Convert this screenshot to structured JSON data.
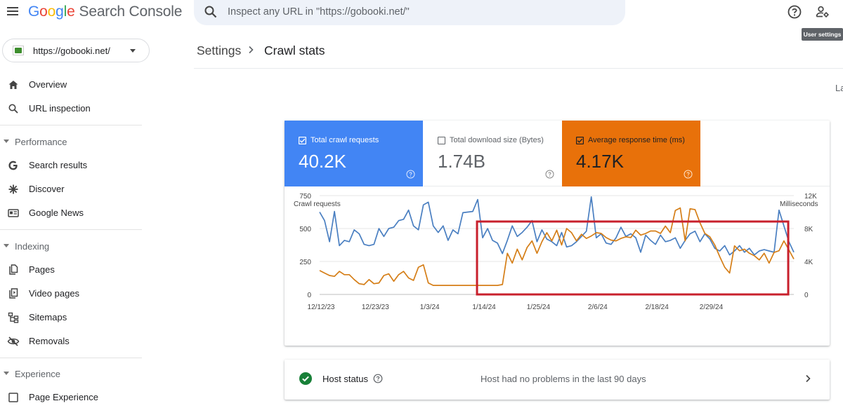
{
  "header": {
    "logo_google": [
      "G",
      "o",
      "o",
      "g",
      "l",
      "e"
    ],
    "product": "Search Console",
    "search_placeholder": "Inspect any URL in \"https://gobooki.net/\"",
    "tooltip": "User settings"
  },
  "property": {
    "label": "https://gobooki.net/"
  },
  "sidebar": {
    "top_items": [
      {
        "label": "Overview",
        "icon": "home-icon"
      },
      {
        "label": "URL inspection",
        "icon": "search-icon"
      }
    ],
    "sections": [
      {
        "title": "Performance",
        "items": [
          {
            "label": "Search results",
            "icon": "google-g-icon"
          },
          {
            "label": "Discover",
            "icon": "asterisk-icon"
          },
          {
            "label": "Google News",
            "icon": "news-icon"
          }
        ]
      },
      {
        "title": "Indexing",
        "items": [
          {
            "label": "Pages",
            "icon": "pages-icon"
          },
          {
            "label": "Video pages",
            "icon": "video-pages-icon"
          },
          {
            "label": "Sitemaps",
            "icon": "sitemap-icon"
          },
          {
            "label": "Removals",
            "icon": "eye-off-icon"
          }
        ]
      },
      {
        "title": "Experience",
        "items": [
          {
            "label": "Page Experience",
            "icon": "page-experience-icon"
          }
        ]
      }
    ]
  },
  "breadcrumb": {
    "parent": "Settings",
    "current": "Crawl stats"
  },
  "partial_text": "La",
  "metrics": [
    {
      "label": "Total crawl requests",
      "value": "40.2K",
      "checked": true,
      "color": "#4285f4"
    },
    {
      "label": "Total download size (Bytes)",
      "value": "1.74B",
      "checked": false,
      "color": "#ffffff"
    },
    {
      "label": "Average response time (ms)",
      "value": "4.17K",
      "checked": true,
      "color": "#e8710a"
    }
  ],
  "chart_data": {
    "type": "line",
    "left_axis_title": "Crawl requests",
    "right_axis_title": "Milliseconds",
    "left_ticks": [
      "750",
      "500",
      "250",
      "0"
    ],
    "right_ticks": [
      "12K",
      "8K",
      "4K",
      "0"
    ],
    "left_ylim": [
      0,
      750
    ],
    "right_ylim": [
      0,
      12000
    ],
    "x_tick_labels": [
      "12/12/23",
      "12/23/23",
      "1/3/24",
      "1/14/24",
      "1/25/24",
      "2/6/24",
      "2/18/24",
      "2/29/24"
    ],
    "x_tick_days": [
      0,
      11,
      22,
      33,
      44,
      56,
      68,
      79
    ],
    "grid": true,
    "series": [
      {
        "axis": "left",
        "color": "#4a7fc1",
        "values": [
          625,
          560,
          400,
          630,
          370,
          410,
          400,
          490,
          460,
          380,
          370,
          380,
          500,
          440,
          500,
          510,
          560,
          570,
          640,
          520,
          490,
          680,
          700,
          520,
          470,
          520,
          410,
          490,
          460,
          620,
          625,
          630,
          720,
          430,
          500,
          410,
          390,
          310,
          410,
          520,
          440,
          470,
          510,
          560,
          400,
          490,
          420,
          400,
          370,
          470,
          360,
          370,
          400,
          440,
          480,
          740,
          430,
          460,
          390,
          380,
          430,
          510,
          440,
          460,
          430,
          320,
          450,
          410,
          380,
          450,
          400,
          410,
          430,
          350,
          410,
          460,
          480,
          400,
          460,
          420,
          350,
          330,
          370,
          300,
          330,
          370,
          320,
          350,
          300,
          330,
          340,
          330,
          320,
          640,
          520,
          400,
          320
        ]
      },
      {
        "axis": "right",
        "color": "#d57e17",
        "values": [
          2900,
          2600,
          2300,
          2200,
          2800,
          2400,
          2400,
          1800,
          1300,
          1200,
          1800,
          1300,
          1400,
          2300,
          2500,
          1600,
          2400,
          2800,
          2000,
          1700,
          3300,
          3600,
          1400,
          1100,
          1100,
          1100,
          1100,
          1100,
          1100,
          1100,
          1100,
          1100,
          1100,
          1100,
          1100,
          1100,
          1100,
          1200,
          5000,
          3800,
          5500,
          4200,
          5700,
          6500,
          5000,
          6400,
          7500,
          6500,
          7800,
          6000,
          8000,
          7500,
          6500,
          7300,
          6800,
          7100,
          7500,
          7400,
          6900,
          6600,
          6500,
          6800,
          7000,
          6900,
          7800,
          7200,
          7400,
          7700,
          7700,
          7400,
          8300,
          7500,
          10200,
          10500,
          6500,
          10400,
          10300,
          8700,
          7400,
          7000,
          6000,
          4600,
          3300,
          2600,
          5900,
          5300,
          5500,
          5000,
          4700,
          4200,
          5000,
          3800,
          5100,
          5300,
          6500,
          5400,
          4300
        ]
      }
    ],
    "highlight_box": {
      "x_start_day": 33,
      "x_end_day": "end"
    }
  },
  "host_status": {
    "label": "Host status",
    "message": "Host had no problems in the last 90 days"
  }
}
